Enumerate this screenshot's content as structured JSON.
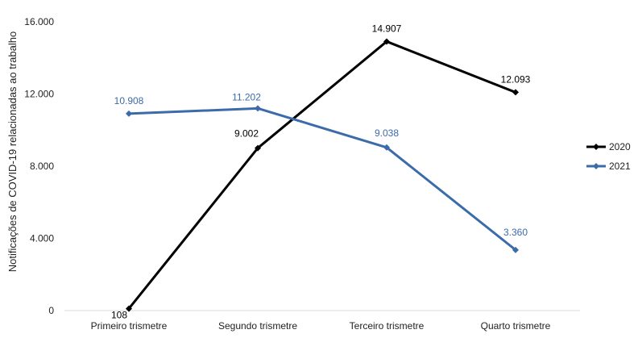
{
  "chart_data": {
    "type": "line",
    "title": "",
    "xlabel": "",
    "ylabel": "Notificações de COVID-19 relacionadas ao trabalho",
    "categories": [
      "Primeiro trismetre",
      "Segundo trismetre",
      "Terceiro trismetre",
      "Quarto trismetre"
    ],
    "ylim": [
      0,
      16000
    ],
    "yticks": [
      0,
      4000,
      8000,
      12000,
      16000
    ],
    "ytick_labels": [
      "0",
      "4.000",
      "8.000",
      "12.000",
      "16.000"
    ],
    "grid": false,
    "legend_position": "right",
    "series": [
      {
        "name": "2020",
        "color": "#000000",
        "values": [
          108,
          9002,
          14907,
          12093
        ],
        "labels": [
          "108",
          "9.002",
          "14.907",
          "12.093"
        ]
      },
      {
        "name": "2021",
        "color": "#3C6BAA",
        "values": [
          10908,
          11202,
          9038,
          3360
        ],
        "labels": [
          "10.908",
          "11.202",
          "9.038",
          "3.360"
        ]
      }
    ]
  }
}
